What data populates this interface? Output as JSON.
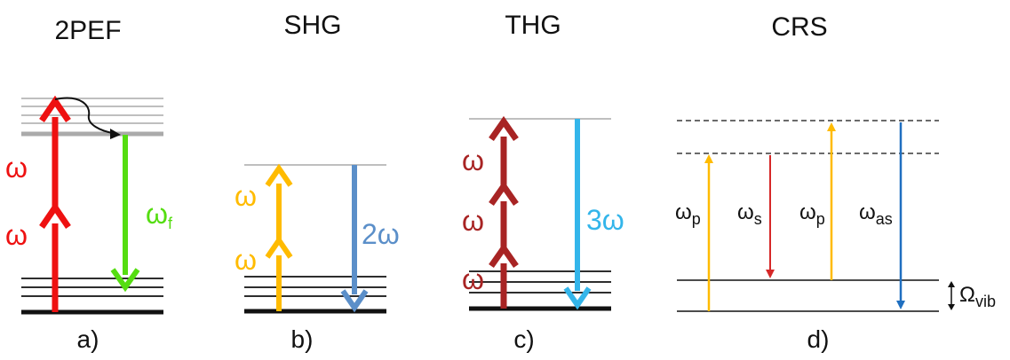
{
  "panels": [
    {
      "title": "2PEF",
      "caption": "a)",
      "labels": {
        "omega1": "ω",
        "omega2": "ω",
        "emit": "ω",
        "emit_sub": "f"
      }
    },
    {
      "title": "SHG",
      "caption": "b)",
      "labels": {
        "omega1": "ω",
        "omega2": "ω",
        "emit": "2ω"
      }
    },
    {
      "title": "THG",
      "caption": "c)",
      "labels": {
        "omega1": "ω",
        "omega2": "ω",
        "omega3": "ω",
        "emit": "3ω"
      }
    },
    {
      "title": "CRS",
      "caption": "d)",
      "labels": {
        "pump": "ω",
        "pump_sub": "p",
        "stokes": "ω",
        "stokes_sub": "s",
        "probe": "ω",
        "probe_sub": "p",
        "anti_stokes": "ω",
        "anti_stokes_sub": "as",
        "vib": "Ω",
        "vib_sub": "vib"
      }
    }
  ],
  "colors": {
    "red": "#ee1111",
    "green": "#55dd11",
    "yellow": "#ffbb00",
    "steel_blue": "#5b8fc9",
    "dark_red": "#a82424",
    "sky_blue": "#33b5ea",
    "crs_red": "#d62828",
    "crs_blue": "#1f6fc0",
    "level_gray": "#aaaaaa"
  }
}
